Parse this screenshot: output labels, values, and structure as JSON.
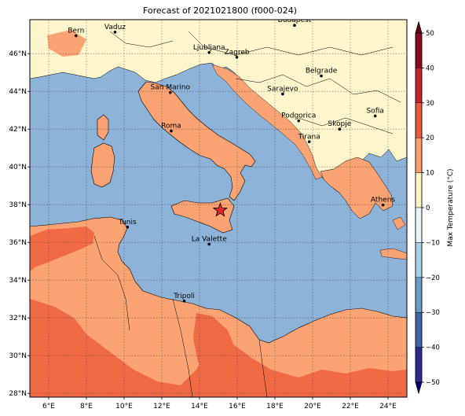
{
  "title": "Forecast of 2021021800 (f000-024)",
  "colorbar": {
    "label": "Max Temperature (°C)",
    "ticks": [
      "50",
      "40",
      "30",
      "20",
      "10",
      "0",
      "−10",
      "−20",
      "−30",
      "−40",
      "−50"
    ],
    "levels": [
      {
        "range": "40–50",
        "color": "#870a22"
      },
      {
        "range": "30–40",
        "color": "#c1272d"
      },
      {
        "range": "20–30",
        "color": "#eb5a3a"
      },
      {
        "range": "10–20",
        "color": "#fb9e6e"
      },
      {
        "range": "0–10",
        "color": "#fbf3c6"
      },
      {
        "range": "−10–0",
        "color": "#e6f5f9"
      },
      {
        "range": "−20–−10",
        "color": "#a8d1e6"
      },
      {
        "range": "−30–−20",
        "color": "#6d9ac6"
      },
      {
        "range": "−40–−30",
        "color": "#3d65a8"
      },
      {
        "range": "−50–−40",
        "color": "#2d2a8d"
      }
    ]
  },
  "map": {
    "lon_labels": [
      "6°E",
      "8°E",
      "10°E",
      "12°E",
      "14°E",
      "16°E",
      "18°E",
      "20°E",
      "22°E",
      "24°E"
    ],
    "lat_labels": [
      "46°N",
      "44°N",
      "42°N",
      "40°N",
      "38°N",
      "36°N",
      "34°N",
      "32°N",
      "30°N",
      "28°N"
    ],
    "extent": {
      "lon_min": 5.0,
      "lon_max": 25.0,
      "lat_min": 27.8,
      "lat_max": 47.8
    },
    "sea_color": "#8eb3d8",
    "land_warm_color": "#fca373",
    "land_hot_color": "#f16a46",
    "land_cool_color": "#fdf5cc",
    "cities": [
      {
        "name": "Bern",
        "lon": 7.45,
        "lat": 46.95
      },
      {
        "name": "Vaduz",
        "lon": 9.52,
        "lat": 47.14
      },
      {
        "name": "Budapest",
        "lon": 19.04,
        "lat": 47.5
      },
      {
        "name": "Ljubljana",
        "lon": 14.51,
        "lat": 46.06
      },
      {
        "name": "Zagreb",
        "lon": 15.98,
        "lat": 45.81
      },
      {
        "name": "Belgrade",
        "lon": 20.46,
        "lat": 44.82
      },
      {
        "name": "San Marino",
        "lon": 12.45,
        "lat": 43.94
      },
      {
        "name": "Sarajevo",
        "lon": 18.41,
        "lat": 43.86
      },
      {
        "name": "Sofia",
        "lon": 23.32,
        "lat": 42.7
      },
      {
        "name": "Podgorica",
        "lon": 19.26,
        "lat": 42.44
      },
      {
        "name": "Skopje",
        "lon": 21.43,
        "lat": 42.0
      },
      {
        "name": "Roma",
        "lon": 12.5,
        "lat": 41.9
      },
      {
        "name": "Tirana",
        "lon": 19.82,
        "lat": 41.33
      },
      {
        "name": "Athens",
        "lon": 23.73,
        "lat": 37.98
      },
      {
        "name": "Tunis",
        "lon": 10.18,
        "lat": 36.81
      },
      {
        "name": "La Valette",
        "lon": 14.51,
        "lat": 35.9
      },
      {
        "name": "Tripoli",
        "lon": 13.19,
        "lat": 32.89
      }
    ],
    "marker": {
      "name": "star",
      "lon": 15.1,
      "lat": 37.7,
      "color": "#e8252b"
    }
  }
}
